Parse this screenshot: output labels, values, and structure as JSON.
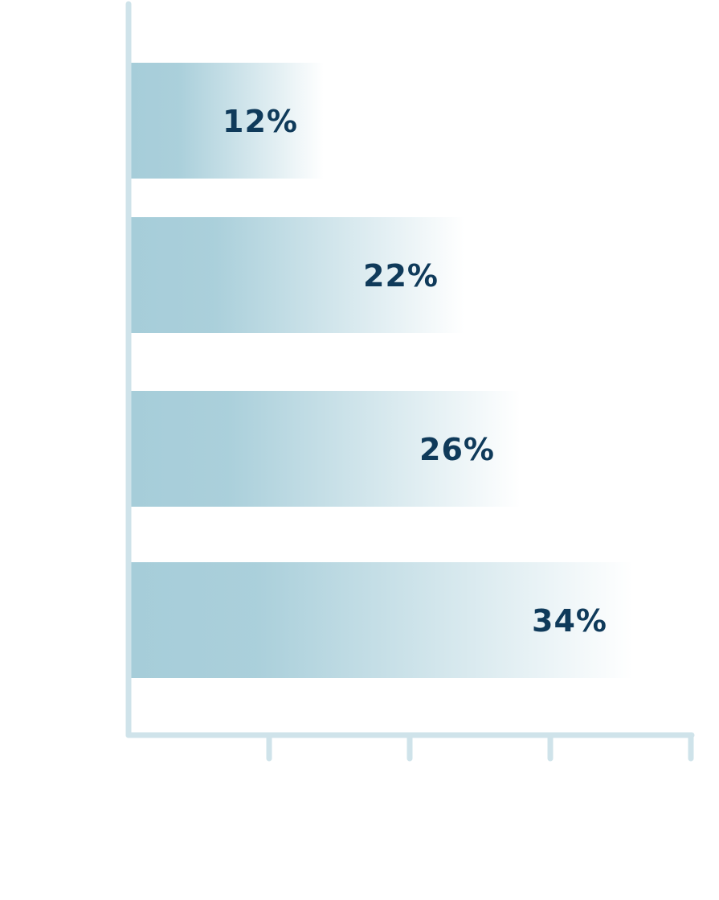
{
  "chart_data": {
    "type": "bar",
    "orientation": "horizontal",
    "categories": [
      "",
      "",
      "",
      ""
    ],
    "values": [
      12,
      22,
      26,
      34
    ],
    "data_labels": [
      "12%",
      "22%",
      "26%",
      "34%"
    ],
    "title": "",
    "xlabel": "",
    "ylabel": "",
    "xlim": [
      0,
      40
    ],
    "x_ticks": [
      10,
      20,
      30,
      40
    ],
    "grid": false,
    "legend": "none"
  },
  "colors": {
    "bar_start": "#a6cdd9",
    "bar_end": "#ffffff",
    "axis": "#cfe3ea",
    "label": "#0f3a5a"
  }
}
